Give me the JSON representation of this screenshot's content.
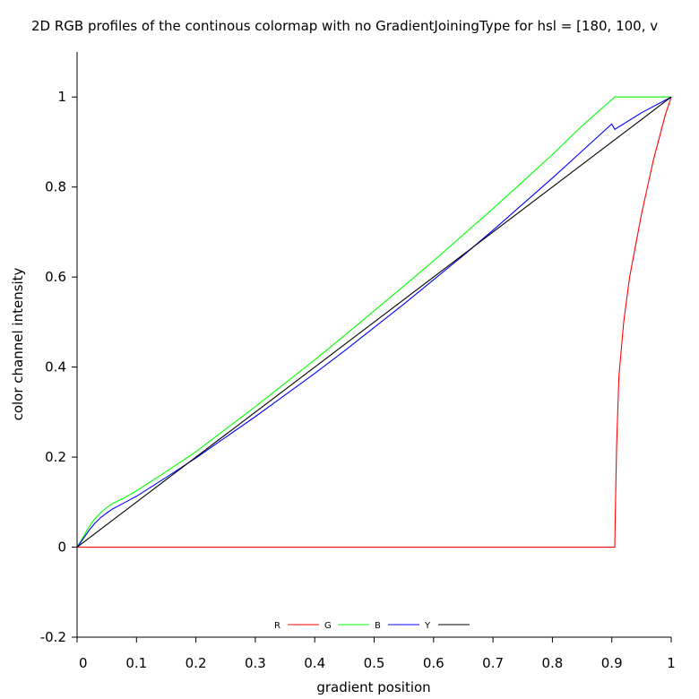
{
  "chart_data": {
    "type": "line",
    "title": "2D RGB profiles of the continous colormap with no GradientJoiningType for hsl = [180, 100, v",
    "xlabel": "gradient position",
    "ylabel": "color channel intensity",
    "xlim": [
      0,
      1
    ],
    "ylim": [
      -0.2,
      1.1
    ],
    "x_ticks": [
      "0",
      "0.1",
      "0.2",
      "0.3",
      "0.4",
      "0.5",
      "0.6",
      "0.7",
      "0.8",
      "0.9",
      "1"
    ],
    "y_ticks": [
      "-0.2",
      "0",
      "0.2",
      "0.4",
      "0.6",
      "0.8",
      "1"
    ],
    "grid": false,
    "legend_position": "bottom-center",
    "series": [
      {
        "name": "R",
        "color": "#ff0000",
        "x": [
          0,
          0.1,
          0.2,
          0.3,
          0.4,
          0.5,
          0.6,
          0.7,
          0.8,
          0.905,
          0.906,
          0.908,
          0.912,
          0.92,
          0.93,
          0.94,
          0.95,
          0.96,
          0.97,
          0.98,
          0.99,
          1.0
        ],
        "y": [
          0,
          0,
          0,
          0,
          0,
          0,
          0,
          0,
          0,
          0,
          0.08,
          0.22,
          0.38,
          0.5,
          0.6,
          0.67,
          0.74,
          0.8,
          0.86,
          0.91,
          0.96,
          1.0
        ]
      },
      {
        "name": "G",
        "color": "#00ff00",
        "x": [
          0,
          0.01,
          0.02,
          0.03,
          0.04,
          0.05,
          0.06,
          0.08,
          0.1,
          0.15,
          0.2,
          0.25,
          0.3,
          0.35,
          0.4,
          0.45,
          0.5,
          0.55,
          0.6,
          0.65,
          0.7,
          0.75,
          0.8,
          0.85,
          0.9,
          0.905,
          0.95,
          1.0
        ],
        "y": [
          0,
          0.022,
          0.045,
          0.063,
          0.077,
          0.088,
          0.097,
          0.11,
          0.125,
          0.168,
          0.212,
          0.262,
          0.312,
          0.364,
          0.416,
          0.47,
          0.525,
          0.58,
          0.636,
          0.694,
          0.752,
          0.812,
          0.872,
          0.936,
          0.994,
          1.0,
          1.0,
          1.0
        ]
      },
      {
        "name": "B",
        "color": "#0000ff",
        "x": [
          0,
          0.01,
          0.02,
          0.03,
          0.04,
          0.05,
          0.06,
          0.08,
          0.1,
          0.15,
          0.2,
          0.25,
          0.3,
          0.35,
          0.4,
          0.45,
          0.5,
          0.55,
          0.6,
          0.65,
          0.7,
          0.75,
          0.8,
          0.85,
          0.9,
          0.905,
          0.95,
          1.0
        ],
        "y": [
          0,
          0.018,
          0.037,
          0.053,
          0.066,
          0.076,
          0.085,
          0.099,
          0.113,
          0.155,
          0.198,
          0.244,
          0.29,
          0.338,
          0.386,
          0.436,
          0.488,
          0.54,
          0.594,
          0.648,
          0.704,
          0.762,
          0.82,
          0.88,
          0.94,
          0.928,
          0.965,
          1.0
        ]
      },
      {
        "name": "Y",
        "color": "#000000",
        "x": [
          0,
          1
        ],
        "y": [
          0,
          1
        ]
      }
    ]
  }
}
